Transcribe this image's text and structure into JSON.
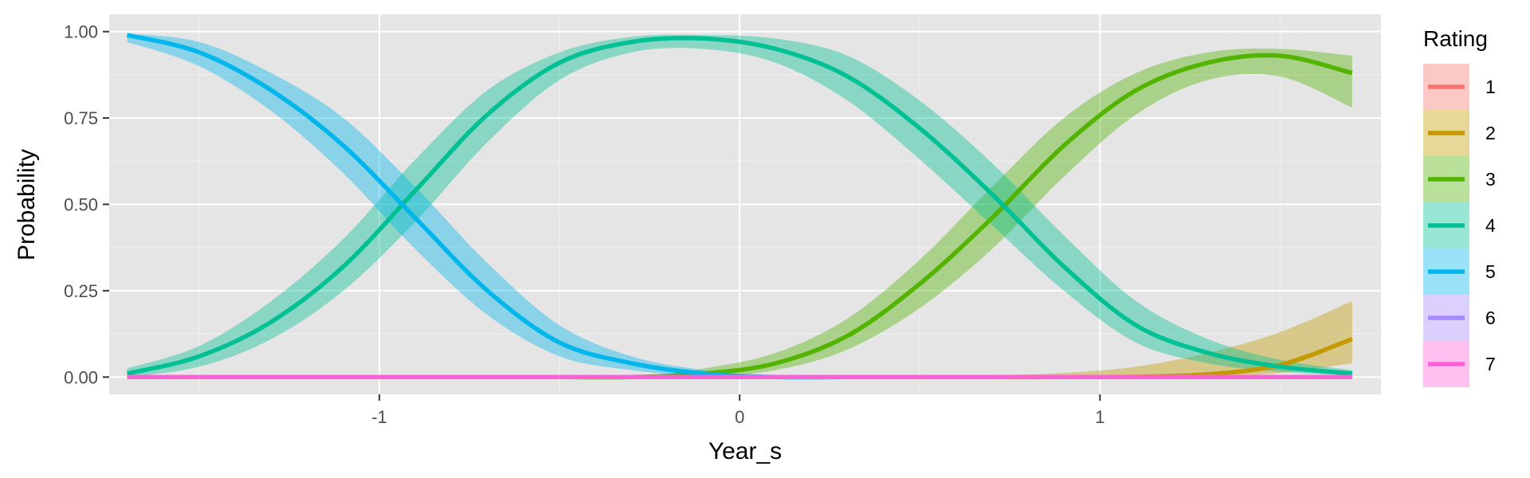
{
  "chart_data": {
    "type": "line",
    "title": "",
    "xlabel": "Year_s",
    "ylabel": "Probability",
    "xlim": [
      -1.75,
      1.78
    ],
    "ylim": [
      -0.05,
      1.05
    ],
    "x_ticks": [
      -1,
      0,
      1
    ],
    "x_tick_labels": [
      "-1",
      "0",
      "1"
    ],
    "y_ticks": [
      0,
      0.25,
      0.5,
      0.75,
      1
    ],
    "y_tick_labels": [
      "0.00",
      "0.25",
      "0.50",
      "0.75",
      "1.00"
    ],
    "grid": true,
    "legend": {
      "title": "Rating",
      "position": "right"
    },
    "x": [
      -1.7,
      -1.5,
      -1.3,
      -1.1,
      -0.9,
      -0.7,
      -0.5,
      -0.3,
      -0.1,
      0.1,
      0.3,
      0.5,
      0.7,
      0.9,
      1.1,
      1.3,
      1.5,
      1.7
    ],
    "series": [
      {
        "name": "1",
        "color": "#F8766D",
        "values": [
          0,
          0,
          0,
          0,
          0,
          0,
          0,
          0,
          0,
          0,
          0,
          0,
          0,
          0,
          0,
          0,
          0,
          0
        ],
        "lower": [
          0,
          0,
          0,
          0,
          0,
          0,
          0,
          0,
          0,
          0,
          0,
          0,
          0,
          0,
          0,
          0,
          0,
          0
        ],
        "upper": [
          0,
          0,
          0,
          0,
          0,
          0,
          0,
          0,
          0,
          0,
          0,
          0,
          0,
          0,
          0,
          0,
          0,
          0
        ]
      },
      {
        "name": "2",
        "color": "#C49A00",
        "values": [
          0,
          0,
          0,
          0,
          0,
          0,
          0,
          0,
          0,
          0,
          0,
          0,
          0,
          0,
          0.001,
          0.008,
          0.035,
          0.11
        ],
        "lower": [
          0,
          0,
          0,
          0,
          0,
          0,
          0,
          0,
          0,
          0,
          0,
          0,
          0,
          0,
          0,
          0.002,
          0.012,
          0.04
        ],
        "upper": [
          0,
          0,
          0,
          0,
          0,
          0,
          0,
          0,
          0,
          0,
          0.001,
          0.002,
          0.005,
          0.012,
          0.03,
          0.07,
          0.13,
          0.22
        ]
      },
      {
        "name": "3",
        "color": "#53B400",
        "values": [
          0,
          0,
          0,
          0,
          0,
          0,
          0,
          0,
          0.01,
          0.04,
          0.12,
          0.27,
          0.46,
          0.67,
          0.83,
          0.91,
          0.93,
          0.88
        ],
        "lower": [
          0,
          0,
          0,
          0,
          0,
          0,
          0,
          0,
          0,
          0.02,
          0.08,
          0.2,
          0.37,
          0.58,
          0.76,
          0.86,
          0.87,
          0.78
        ],
        "upper": [
          0,
          0,
          0,
          0,
          0,
          0,
          0,
          0,
          0.025,
          0.07,
          0.17,
          0.34,
          0.55,
          0.75,
          0.88,
          0.94,
          0.95,
          0.93
        ]
      },
      {
        "name": "4",
        "color": "#00C094",
        "values": [
          0.01,
          0.06,
          0.16,
          0.32,
          0.54,
          0.76,
          0.91,
          0.97,
          0.98,
          0.95,
          0.87,
          0.72,
          0.53,
          0.32,
          0.15,
          0.07,
          0.03,
          0.01
        ],
        "lower": [
          0,
          0.03,
          0.11,
          0.25,
          0.45,
          0.68,
          0.86,
          0.94,
          0.95,
          0.91,
          0.8,
          0.63,
          0.44,
          0.25,
          0.1,
          0.04,
          0.015,
          0.005
        ],
        "upper": [
          0.025,
          0.09,
          0.22,
          0.4,
          0.63,
          0.83,
          0.94,
          0.985,
          0.99,
          0.98,
          0.93,
          0.8,
          0.62,
          0.41,
          0.22,
          0.11,
          0.05,
          0.02
        ]
      },
      {
        "name": "5",
        "color": "#00B6EB",
        "values": [
          0.99,
          0.94,
          0.83,
          0.67,
          0.46,
          0.25,
          0.1,
          0.04,
          0.01,
          0,
          0,
          0,
          0,
          0,
          0,
          0,
          0,
          0
        ],
        "lower": [
          0.97,
          0.9,
          0.77,
          0.59,
          0.37,
          0.18,
          0.06,
          0.02,
          0.003,
          0,
          0,
          0,
          0,
          0,
          0,
          0,
          0,
          0
        ],
        "upper": [
          0.995,
          0.97,
          0.88,
          0.75,
          0.55,
          0.33,
          0.15,
          0.06,
          0.02,
          0,
          0,
          0,
          0,
          0,
          0,
          0,
          0,
          0
        ]
      },
      {
        "name": "6",
        "color": "#A58AFF",
        "values": [
          0,
          0,
          0,
          0,
          0,
          0,
          0,
          0,
          0,
          0,
          0,
          0,
          0,
          0,
          0,
          0,
          0,
          0
        ],
        "lower": [
          0,
          0,
          0,
          0,
          0,
          0,
          0,
          0,
          0,
          0,
          0,
          0,
          0,
          0,
          0,
          0,
          0,
          0
        ],
        "upper": [
          0,
          0,
          0,
          0,
          0,
          0,
          0,
          0,
          0,
          0,
          0,
          0,
          0,
          0,
          0,
          0,
          0,
          0
        ]
      },
      {
        "name": "7",
        "color": "#FB61D7",
        "values": [
          0,
          0,
          0,
          0,
          0,
          0,
          0,
          0,
          0,
          0,
          0,
          0,
          0,
          0,
          0,
          0,
          0,
          0
        ],
        "lower": [
          0,
          0,
          0,
          0,
          0,
          0,
          0,
          0,
          0,
          0,
          0,
          0,
          0,
          0,
          0,
          0,
          0,
          0
        ],
        "upper": [
          0,
          0,
          0,
          0,
          0,
          0,
          0,
          0,
          0,
          0,
          0,
          0,
          0,
          0,
          0,
          0,
          0,
          0
        ]
      }
    ]
  }
}
